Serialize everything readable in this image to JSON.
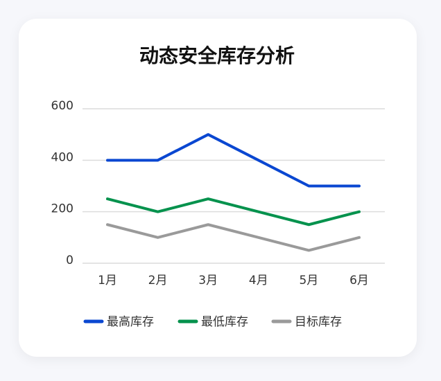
{
  "chart_data": {
    "type": "line",
    "title": "动态安全库存分析",
    "categories": [
      "1月",
      "2月",
      "3月",
      "4月",
      "5月",
      "6月"
    ],
    "series": [
      {
        "name": "最高库存",
        "color": "#0a47d1",
        "values": [
          400,
          400,
          500,
          400,
          300,
          300
        ]
      },
      {
        "name": "最低库存",
        "color": "#05924d",
        "values": [
          250,
          200,
          250,
          200,
          150,
          200
        ]
      },
      {
        "name": "目标库存",
        "color": "#9a9a9a",
        "values": [
          150,
          100,
          150,
          100,
          50,
          100
        ]
      }
    ],
    "ylim": [
      0,
      600
    ],
    "yticks": [
      0,
      200,
      400,
      600
    ],
    "grid": true,
    "legend": "bottom"
  }
}
